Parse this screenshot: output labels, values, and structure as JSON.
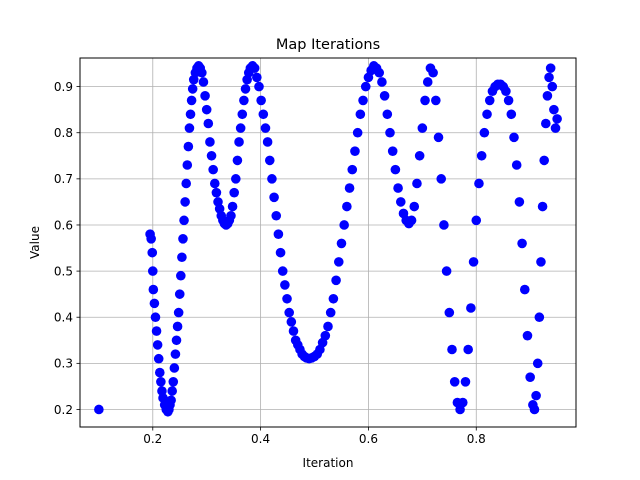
{
  "chart_data": {
    "type": "scatter",
    "title": "Map Iterations",
    "xlabel": "Iteration",
    "ylabel": "Value",
    "xlim": [
      0.065,
      0.985
    ],
    "ylim": [
      0.162,
      0.962
    ],
    "xticks": [
      0.2,
      0.4,
      0.6,
      0.8
    ],
    "yticks": [
      0.2,
      0.3,
      0.4,
      0.5,
      0.6,
      0.7,
      0.8,
      0.9
    ],
    "xtick_labels": [
      "0.2",
      "0.4",
      "0.6",
      "0.8"
    ],
    "ytick_labels": [
      "0.2",
      "0.3",
      "0.4",
      "0.5",
      "0.6",
      "0.7",
      "0.8",
      "0.9"
    ],
    "grid": true,
    "legend": "none",
    "marker_color": "#0000ff",
    "series": [
      {
        "points": [
          [
            0.1,
            0.2
          ],
          [
            0.195,
            0.58
          ],
          [
            0.197,
            0.57
          ],
          [
            0.199,
            0.54
          ],
          [
            0.2,
            0.5
          ],
          [
            0.201,
            0.46
          ],
          [
            0.203,
            0.43
          ],
          [
            0.205,
            0.4
          ],
          [
            0.207,
            0.37
          ],
          [
            0.209,
            0.34
          ],
          [
            0.211,
            0.31
          ],
          [
            0.213,
            0.28
          ],
          [
            0.215,
            0.26
          ],
          [
            0.217,
            0.24
          ],
          [
            0.219,
            0.225
          ],
          [
            0.222,
            0.21
          ],
          [
            0.225,
            0.2
          ],
          [
            0.228,
            0.195
          ],
          [
            0.23,
            0.2
          ],
          [
            0.232,
            0.21
          ],
          [
            0.234,
            0.22
          ],
          [
            0.236,
            0.24
          ],
          [
            0.238,
            0.26
          ],
          [
            0.24,
            0.29
          ],
          [
            0.242,
            0.32
          ],
          [
            0.244,
            0.35
          ],
          [
            0.246,
            0.38
          ],
          [
            0.248,
            0.41
          ],
          [
            0.25,
            0.45
          ],
          [
            0.252,
            0.49
          ],
          [
            0.254,
            0.53
          ],
          [
            0.256,
            0.57
          ],
          [
            0.258,
            0.61
          ],
          [
            0.26,
            0.65
          ],
          [
            0.262,
            0.69
          ],
          [
            0.264,
            0.73
          ],
          [
            0.266,
            0.77
          ],
          [
            0.268,
            0.81
          ],
          [
            0.27,
            0.84
          ],
          [
            0.272,
            0.87
          ],
          [
            0.274,
            0.895
          ],
          [
            0.276,
            0.915
          ],
          [
            0.279,
            0.93
          ],
          [
            0.282,
            0.94
          ],
          [
            0.285,
            0.945
          ],
          [
            0.288,
            0.94
          ],
          [
            0.291,
            0.93
          ],
          [
            0.294,
            0.91
          ],
          [
            0.297,
            0.88
          ],
          [
            0.3,
            0.85
          ],
          [
            0.303,
            0.82
          ],
          [
            0.306,
            0.78
          ],
          [
            0.309,
            0.75
          ],
          [
            0.312,
            0.72
          ],
          [
            0.315,
            0.69
          ],
          [
            0.318,
            0.67
          ],
          [
            0.321,
            0.65
          ],
          [
            0.324,
            0.635
          ],
          [
            0.327,
            0.62
          ],
          [
            0.33,
            0.61
          ],
          [
            0.333,
            0.603
          ],
          [
            0.336,
            0.6
          ],
          [
            0.339,
            0.603
          ],
          [
            0.342,
            0.61
          ],
          [
            0.345,
            0.62
          ],
          [
            0.348,
            0.64
          ],
          [
            0.351,
            0.67
          ],
          [
            0.354,
            0.7
          ],
          [
            0.357,
            0.74
          ],
          [
            0.36,
            0.78
          ],
          [
            0.363,
            0.81
          ],
          [
            0.366,
            0.84
          ],
          [
            0.369,
            0.87
          ],
          [
            0.372,
            0.895
          ],
          [
            0.375,
            0.915
          ],
          [
            0.378,
            0.93
          ],
          [
            0.381,
            0.94
          ],
          [
            0.385,
            0.945
          ],
          [
            0.389,
            0.94
          ],
          [
            0.393,
            0.92
          ],
          [
            0.397,
            0.9
          ],
          [
            0.401,
            0.87
          ],
          [
            0.405,
            0.84
          ],
          [
            0.409,
            0.81
          ],
          [
            0.413,
            0.78
          ],
          [
            0.417,
            0.74
          ],
          [
            0.421,
            0.7
          ],
          [
            0.425,
            0.66
          ],
          [
            0.429,
            0.62
          ],
          [
            0.433,
            0.58
          ],
          [
            0.437,
            0.54
          ],
          [
            0.441,
            0.5
          ],
          [
            0.445,
            0.47
          ],
          [
            0.449,
            0.44
          ],
          [
            0.453,
            0.41
          ],
          [
            0.457,
            0.39
          ],
          [
            0.461,
            0.37
          ],
          [
            0.465,
            0.35
          ],
          [
            0.469,
            0.34
          ],
          [
            0.473,
            0.33
          ],
          [
            0.477,
            0.32
          ],
          [
            0.481,
            0.315
          ],
          [
            0.485,
            0.312
          ],
          [
            0.49,
            0.31
          ],
          [
            0.495,
            0.312
          ],
          [
            0.5,
            0.315
          ],
          [
            0.505,
            0.32
          ],
          [
            0.51,
            0.33
          ],
          [
            0.515,
            0.345
          ],
          [
            0.52,
            0.36
          ],
          [
            0.525,
            0.38
          ],
          [
            0.53,
            0.41
          ],
          [
            0.535,
            0.44
          ],
          [
            0.54,
            0.48
          ],
          [
            0.545,
            0.52
          ],
          [
            0.55,
            0.56
          ],
          [
            0.555,
            0.6
          ],
          [
            0.56,
            0.64
          ],
          [
            0.565,
            0.68
          ],
          [
            0.57,
            0.72
          ],
          [
            0.575,
            0.76
          ],
          [
            0.58,
            0.8
          ],
          [
            0.585,
            0.84
          ],
          [
            0.59,
            0.87
          ],
          [
            0.595,
            0.9
          ],
          [
            0.6,
            0.92
          ],
          [
            0.605,
            0.935
          ],
          [
            0.61,
            0.945
          ],
          [
            0.615,
            0.94
          ],
          [
            0.62,
            0.93
          ],
          [
            0.625,
            0.91
          ],
          [
            0.63,
            0.88
          ],
          [
            0.635,
            0.84
          ],
          [
            0.64,
            0.8
          ],
          [
            0.645,
            0.76
          ],
          [
            0.65,
            0.72
          ],
          [
            0.655,
            0.68
          ],
          [
            0.66,
            0.65
          ],
          [
            0.665,
            0.625
          ],
          [
            0.67,
            0.61
          ],
          [
            0.675,
            0.603
          ],
          [
            0.68,
            0.61
          ],
          [
            0.685,
            0.64
          ],
          [
            0.69,
            0.69
          ],
          [
            0.695,
            0.75
          ],
          [
            0.7,
            0.81
          ],
          [
            0.705,
            0.87
          ],
          [
            0.71,
            0.91
          ],
          [
            0.715,
            0.94
          ],
          [
            0.72,
            0.93
          ],
          [
            0.725,
            0.87
          ],
          [
            0.73,
            0.79
          ],
          [
            0.735,
            0.7
          ],
          [
            0.74,
            0.6
          ],
          [
            0.745,
            0.5
          ],
          [
            0.75,
            0.41
          ],
          [
            0.755,
            0.33
          ],
          [
            0.76,
            0.26
          ],
          [
            0.765,
            0.215
          ],
          [
            0.77,
            0.2
          ],
          [
            0.775,
            0.215
          ],
          [
            0.78,
            0.26
          ],
          [
            0.785,
            0.33
          ],
          [
            0.79,
            0.42
          ],
          [
            0.795,
            0.52
          ],
          [
            0.8,
            0.61
          ],
          [
            0.805,
            0.69
          ],
          [
            0.81,
            0.75
          ],
          [
            0.815,
            0.8
          ],
          [
            0.82,
            0.84
          ],
          [
            0.825,
            0.87
          ],
          [
            0.83,
            0.89
          ],
          [
            0.835,
            0.9
          ],
          [
            0.84,
            0.905
          ],
          [
            0.845,
            0.905
          ],
          [
            0.85,
            0.9
          ],
          [
            0.855,
            0.89
          ],
          [
            0.86,
            0.87
          ],
          [
            0.865,
            0.84
          ],
          [
            0.87,
            0.79
          ],
          [
            0.875,
            0.73
          ],
          [
            0.88,
            0.65
          ],
          [
            0.885,
            0.56
          ],
          [
            0.89,
            0.46
          ],
          [
            0.895,
            0.36
          ],
          [
            0.9,
            0.27
          ],
          [
            0.905,
            0.21
          ],
          [
            0.908,
            0.2
          ],
          [
            0.911,
            0.23
          ],
          [
            0.914,
            0.3
          ],
          [
            0.917,
            0.4
          ],
          [
            0.92,
            0.52
          ],
          [
            0.923,
            0.64
          ],
          [
            0.926,
            0.74
          ],
          [
            0.929,
            0.82
          ],
          [
            0.932,
            0.88
          ],
          [
            0.935,
            0.92
          ],
          [
            0.938,
            0.94
          ],
          [
            0.941,
            0.9
          ],
          [
            0.944,
            0.85
          ],
          [
            0.947,
            0.81
          ],
          [
            0.95,
            0.83
          ]
        ]
      }
    ]
  }
}
